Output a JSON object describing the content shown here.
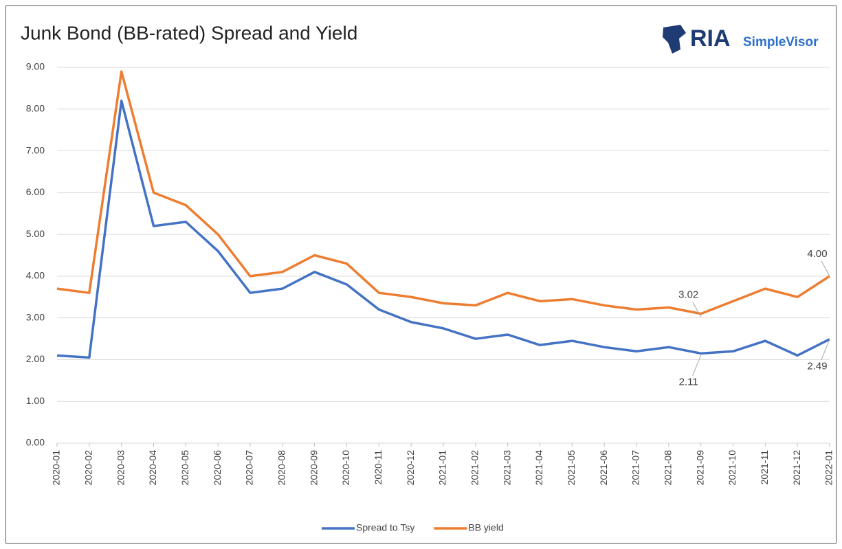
{
  "chart_data": {
    "type": "line",
    "title": "Junk Bond (BB-rated) Spread and Yield",
    "logo": {
      "main": "RIA",
      "sub": "SimpleVisor"
    },
    "x": [
      "2020-01",
      "2020-02",
      "2020-03",
      "2020-04",
      "2020-05",
      "2020-06",
      "2020-07",
      "2020-08",
      "2020-09",
      "2020-10",
      "2020-11",
      "2020-12",
      "2021-01",
      "2021-02",
      "2021-03",
      "2021-04",
      "2021-05",
      "2021-06",
      "2021-07",
      "2021-08",
      "2021-09",
      "2021-10",
      "2021-11",
      "2021-12",
      "2022-01"
    ],
    "series": [
      {
        "name": "Spread to Tsy",
        "color": "#4472c4",
        "values": [
          2.1,
          2.05,
          8.2,
          5.2,
          5.3,
          4.6,
          3.6,
          3.7,
          4.1,
          3.8,
          3.2,
          2.9,
          2.75,
          2.5,
          2.6,
          2.35,
          2.45,
          2.3,
          2.2,
          2.3,
          2.15,
          2.2,
          2.45,
          2.1,
          2.49
        ]
      },
      {
        "name": "BB yield",
        "color": "#ed7d31",
        "values": [
          3.7,
          3.6,
          8.9,
          6.0,
          5.7,
          5.0,
          4.0,
          4.1,
          4.5,
          4.3,
          3.6,
          3.5,
          3.35,
          3.3,
          3.6,
          3.4,
          3.45,
          3.3,
          3.2,
          3.25,
          3.1,
          3.4,
          3.7,
          3.5,
          4.0
        ]
      }
    ],
    "annotations": [
      {
        "text": "3.02",
        "x": "2021-09",
        "value": 3.02
      },
      {
        "text": "2.11",
        "x": "2021-09",
        "value": 2.11
      },
      {
        "text": "4.00",
        "x": "2022-01",
        "value": 4.0
      },
      {
        "text": "2.49",
        "x": "2022-01",
        "value": 2.49
      }
    ],
    "ylim": [
      0,
      9
    ],
    "yticks": [
      {
        "value": 0,
        "label": "0.00"
      },
      {
        "value": 1,
        "label": "1.00"
      },
      {
        "value": 2,
        "label": "2.00"
      },
      {
        "value": 3,
        "label": "3.00"
      },
      {
        "value": 4,
        "label": "4.00"
      },
      {
        "value": 5,
        "label": "5.00"
      },
      {
        "value": 6,
        "label": "6.00"
      },
      {
        "value": 7,
        "label": "7.00"
      },
      {
        "value": 8,
        "label": "8.00"
      },
      {
        "value": 9,
        "label": "9.00"
      }
    ],
    "grid": true,
    "legend": "bottom"
  }
}
